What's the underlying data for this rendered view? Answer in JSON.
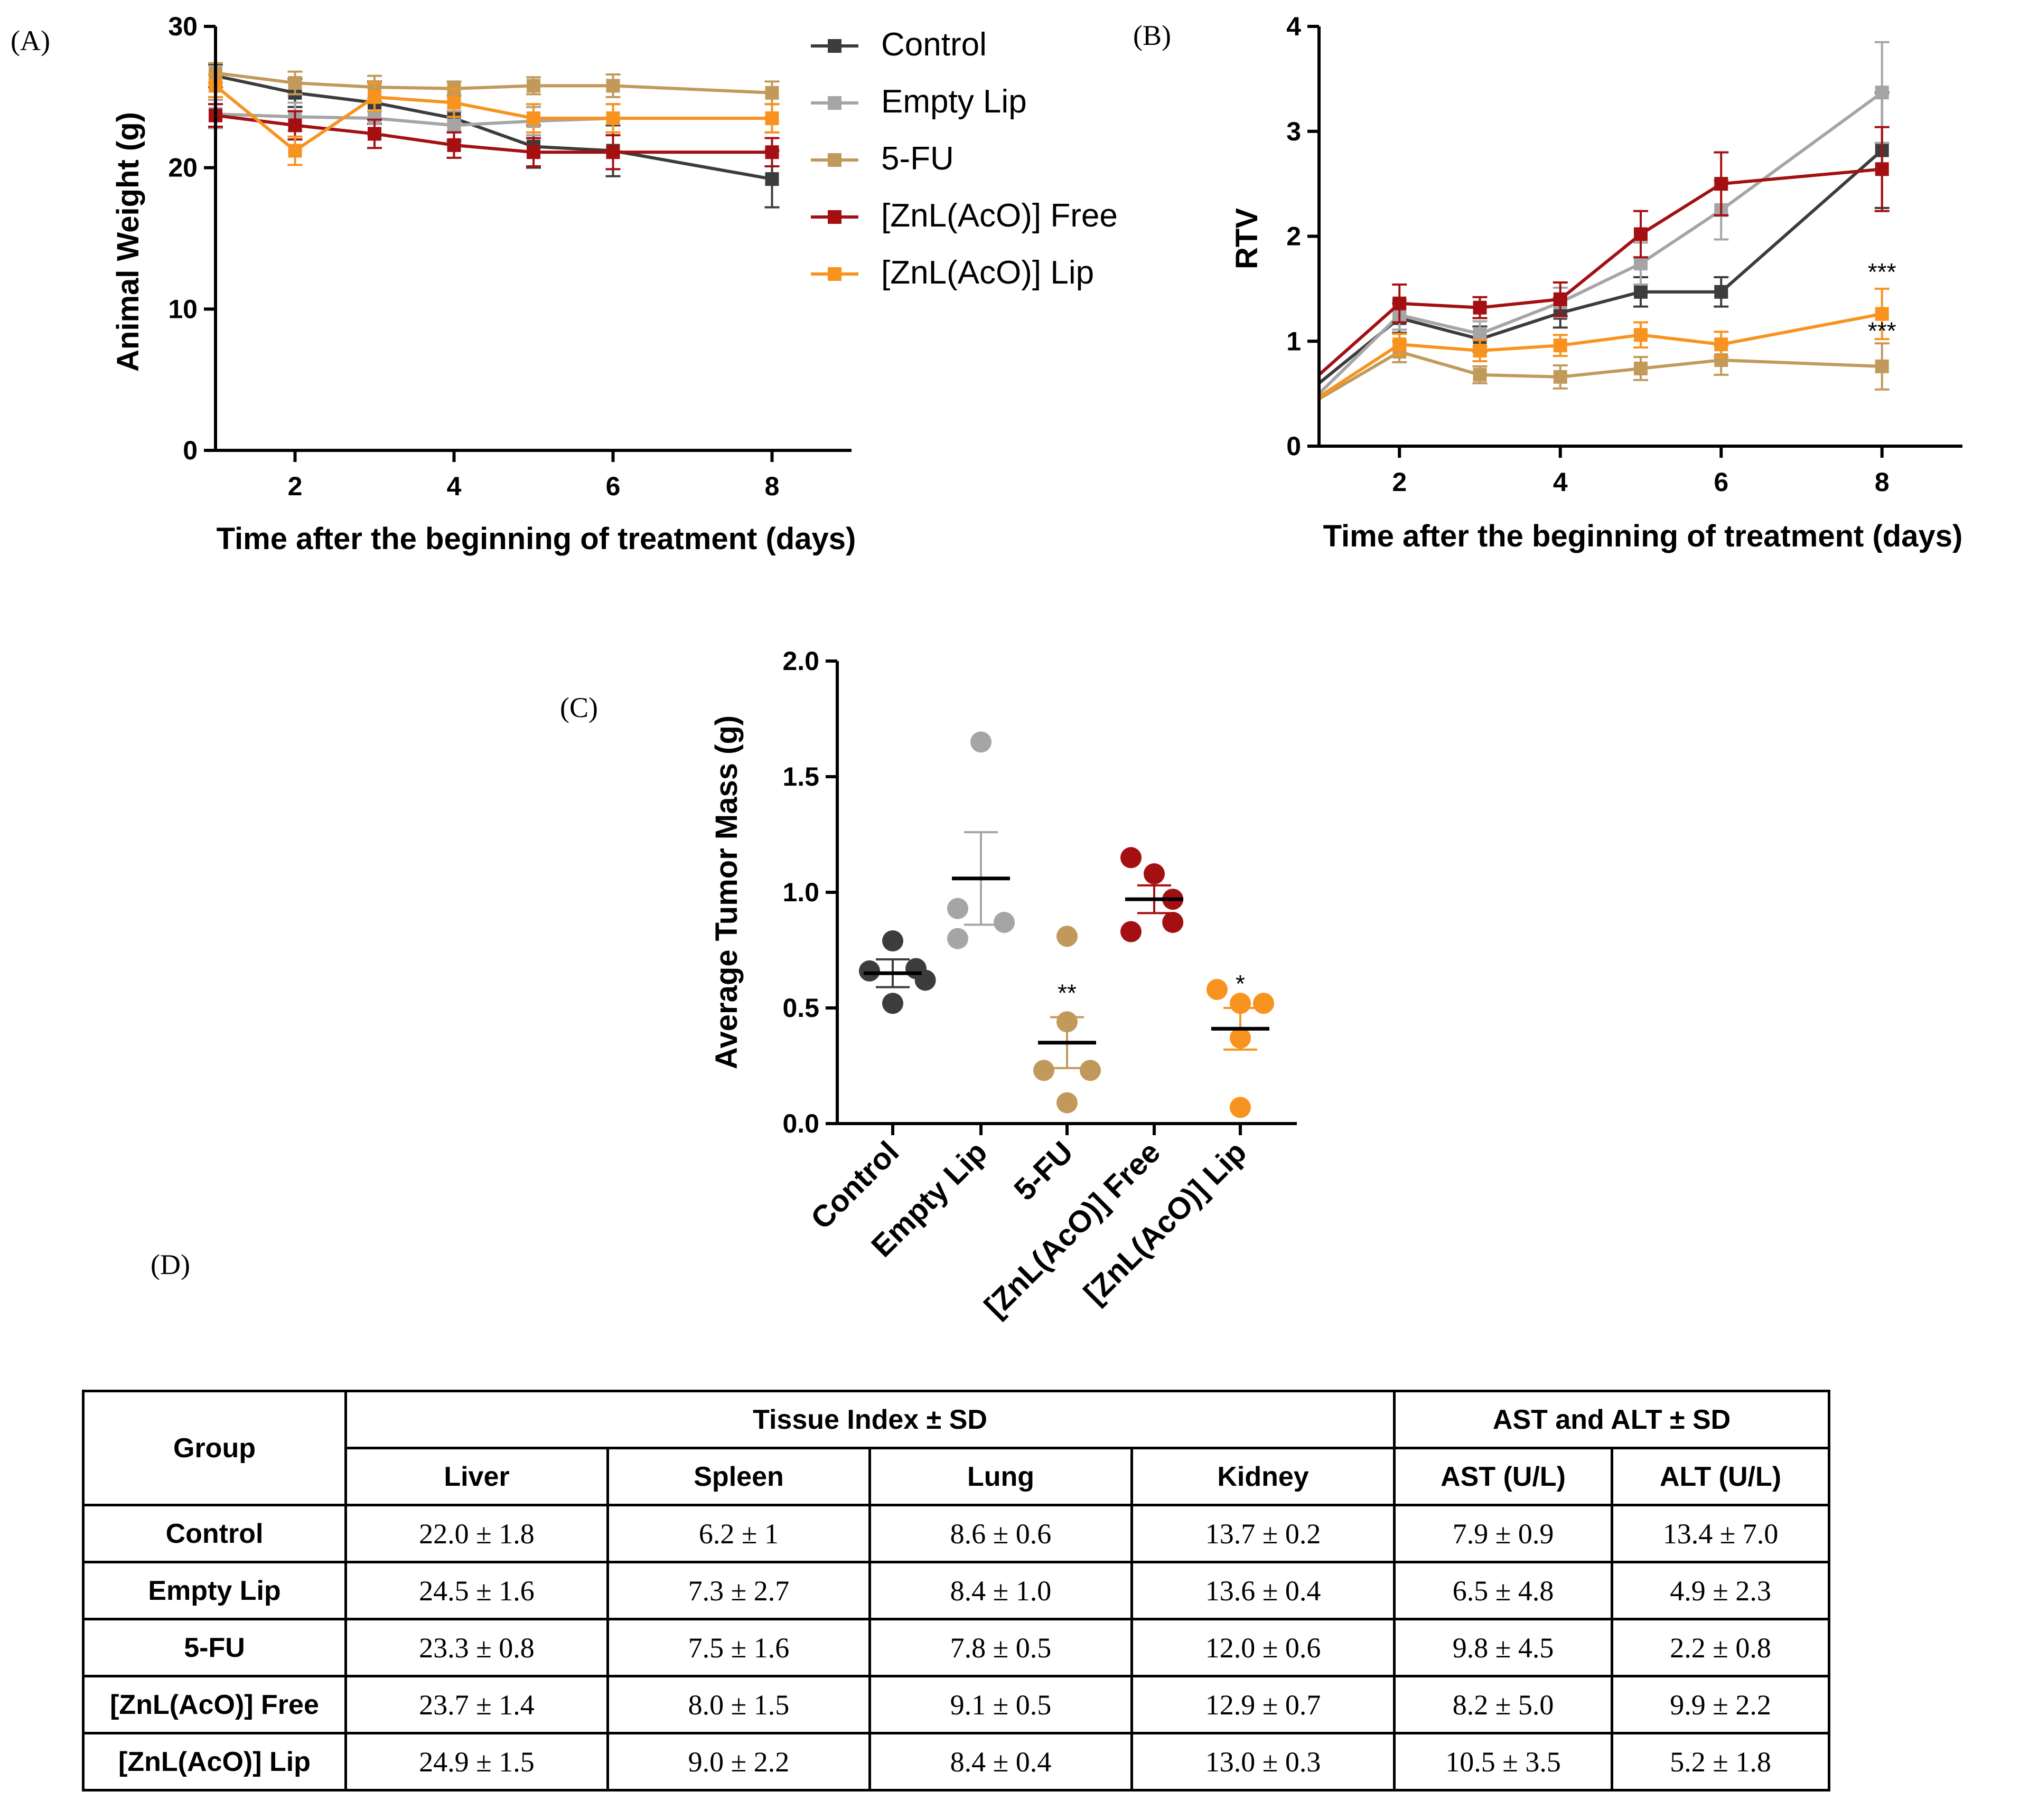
{
  "colors": {
    "control": "#3c3c3c",
    "empty_lip": "#a5a5a7",
    "five_fu": "#c19a5b",
    "znl_free": "#a40f12",
    "znl_lip": "#f7931e",
    "znl_lip_line": "#f5b45e"
  },
  "panel_labels": {
    "a": "(A)",
    "b": "(B)",
    "c": "(C)",
    "d": "(D)"
  },
  "chart_data": [
    {
      "id": "A",
      "type": "line",
      "title": "",
      "xlabel": "Time after the beginning of treatment (days)",
      "ylabel": "Animal Weight (g)",
      "xlim": [
        1,
        9
      ],
      "ylim": [
        0,
        30
      ],
      "xticks": [
        2,
        4,
        6,
        8
      ],
      "yticks": [
        0,
        10,
        20,
        30
      ],
      "legend_position": "right",
      "series": [
        {
          "name": "Control",
          "color_key": "control",
          "x": [
            1,
            2,
            3,
            4,
            5,
            6,
            8
          ],
          "values": [
            26.5,
            25.3,
            24.6,
            23.5,
            21.5,
            21.2,
            19.2
          ],
          "err": [
            0.8,
            1.0,
            1.5,
            1.6,
            1.5,
            1.8,
            2.0
          ]
        },
        {
          "name": "Empty Lip",
          "color_key": "empty_lip",
          "x": [
            1,
            2,
            3,
            4,
            5,
            6,
            8
          ],
          "values": [
            23.8,
            23.6,
            23.5,
            23.0,
            23.3,
            23.5,
            23.5
          ],
          "err": [
            1.0,
            1.0,
            1.2,
            1.0,
            1.0,
            1.0,
            1.0
          ]
        },
        {
          "name": "5-FU",
          "color_key": "five_fu",
          "x": [
            1,
            2,
            3,
            4,
            5,
            6,
            8
          ],
          "values": [
            26.7,
            26.0,
            25.7,
            25.6,
            25.8,
            25.8,
            25.3
          ],
          "err": [
            0.7,
            0.8,
            0.8,
            0.5,
            0.6,
            0.8,
            0.8
          ]
        },
        {
          "name": "[ZnL(AcO)] Free",
          "color_key": "znl_free",
          "x": [
            1,
            2,
            3,
            4,
            5,
            6,
            8
          ],
          "values": [
            23.7,
            23.0,
            22.4,
            21.6,
            21.1,
            21.1,
            21.1
          ],
          "err": [
            0.8,
            1.0,
            1.0,
            0.9,
            1.0,
            1.2,
            1.0
          ]
        },
        {
          "name": "[ZnL(AcO)] Lip",
          "color_key": "znl_lip",
          "x": [
            1,
            2,
            3,
            4,
            5,
            6,
            8
          ],
          "values": [
            25.8,
            21.2,
            25.0,
            24.6,
            23.5,
            23.5,
            23.5
          ],
          "err": [
            0.8,
            1.0,
            1.0,
            1.0,
            1.0,
            1.0,
            1.0
          ]
        }
      ]
    },
    {
      "id": "B",
      "type": "line",
      "title": "",
      "xlabel": "Time after the beginning of treatment (days)",
      "ylabel": "RTV",
      "xlim": [
        1,
        9
      ],
      "ylim": [
        0,
        4
      ],
      "xticks": [
        2,
        4,
        6,
        8
      ],
      "yticks": [
        0,
        1,
        2,
        3,
        4
      ],
      "annotations": [
        {
          "x": 8,
          "y": 1.58,
          "text": "***"
        },
        {
          "x": 8,
          "y": 1.02,
          "text": "***"
        }
      ],
      "series": [
        {
          "name": "Control",
          "color_key": "control",
          "x": [
            1,
            2,
            3,
            4,
            5,
            6,
            8
          ],
          "values": [
            0.6,
            1.22,
            1.02,
            1.27,
            1.47,
            1.47,
            2.82
          ],
          "err": [
            0,
            0.14,
            0.12,
            0.14,
            0.14,
            0.14,
            0.55
          ]
        },
        {
          "name": "Empty Lip",
          "color_key": "empty_lip",
          "x": [
            1,
            2,
            3,
            4,
            5,
            6,
            8
          ],
          "values": [
            0.5,
            1.25,
            1.07,
            1.37,
            1.74,
            2.25,
            3.37
          ],
          "err": [
            0,
            0.14,
            0.12,
            0.14,
            0.2,
            0.28,
            0.48
          ]
        },
        {
          "name": "5-FU",
          "color_key": "five_fu",
          "x": [
            1,
            2,
            3,
            4,
            5,
            6,
            8
          ],
          "values": [
            0.45,
            0.9,
            0.68,
            0.66,
            0.74,
            0.82,
            0.76
          ],
          "err": [
            0,
            0.1,
            0.08,
            0.11,
            0.11,
            0.14,
            0.22
          ]
        },
        {
          "name": "[ZnL(AcO)] Free",
          "color_key": "znl_free",
          "x": [
            1,
            2,
            3,
            4,
            5,
            6,
            8
          ],
          "values": [
            0.68,
            1.36,
            1.32,
            1.4,
            2.02,
            2.5,
            2.64
          ],
          "err": [
            0,
            0.18,
            0.1,
            0.16,
            0.22,
            0.3,
            0.4
          ]
        },
        {
          "name": "[ZnL(AcO)] Lip",
          "color_key": "znl_lip",
          "x": [
            1,
            2,
            3,
            4,
            5,
            6,
            8
          ],
          "values": [
            0.47,
            0.97,
            0.91,
            0.96,
            1.06,
            0.97,
            1.26
          ],
          "err": [
            0,
            0.1,
            0.1,
            0.1,
            0.12,
            0.12,
            0.24
          ]
        }
      ]
    },
    {
      "id": "C",
      "type": "scatter",
      "title": "",
      "xlabel": "",
      "ylabel": "Average Tumor Mass (g)",
      "ylim": [
        0,
        2
      ],
      "yticks": [
        "0.0",
        "0.5",
        "1.0",
        "1.5",
        "2.0"
      ],
      "categories": [
        "Control",
        "Empty Lip",
        "5-FU",
        "[ZnL(AcO)] Free",
        "[ZnL(AcO)] Lip"
      ],
      "groups": [
        {
          "name": "Control",
          "color_key": "control",
          "mean": 0.65,
          "sem": 0.06,
          "points": [
            0.79,
            0.66,
            0.67,
            0.62,
            0.52
          ],
          "offsets": [
            0,
            -0.5,
            0.5,
            0.7,
            0
          ],
          "sig": ""
        },
        {
          "name": "Empty Lip",
          "color_key": "empty_lip",
          "mean": 1.06,
          "sem": 0.2,
          "points": [
            1.65,
            0.93,
            0.8,
            0.87
          ],
          "offsets": [
            0,
            -0.5,
            -0.5,
            0.5
          ],
          "sig": ""
        },
        {
          "name": "5-FU",
          "color_key": "five_fu",
          "mean": 0.35,
          "sem": 0.11,
          "points": [
            0.81,
            0.44,
            0.23,
            0.23,
            0.09
          ],
          "offsets": [
            0,
            0,
            -0.5,
            0.5,
            0
          ],
          "sig": "**"
        },
        {
          "name": "[ZnL(AcO)] Free",
          "color_key": "znl_free",
          "mean": 0.97,
          "sem": 0.06,
          "points": [
            1.15,
            1.08,
            0.97,
            0.87,
            0.83
          ],
          "offsets": [
            -0.5,
            0,
            0.4,
            0.4,
            -0.5
          ],
          "sig": ""
        },
        {
          "name": "[ZnL(AcO)] Lip",
          "color_key": "znl_lip",
          "mean": 0.41,
          "sem": 0.09,
          "points": [
            0.58,
            0.52,
            0.52,
            0.37,
            0.07
          ],
          "offsets": [
            -0.5,
            0,
            0.5,
            0,
            0
          ],
          "sig": "*"
        }
      ]
    }
  ],
  "table": {
    "group_header": "Group",
    "tissue_header": "Tissue Index ± SD",
    "enzyme_header": "AST and ALT ± SD",
    "columns": [
      "Liver",
      "Spleen",
      "Lung",
      "Kidney",
      "AST (U/L)",
      "ALT (U/L)"
    ],
    "rows": [
      {
        "group": "Control",
        "cells": [
          "22.0 ± 1.8",
          "6.2 ± 1",
          "8.6 ± 0.6",
          "13.7 ± 0.2",
          "7.9 ± 0.9",
          "13.4 ± 7.0"
        ]
      },
      {
        "group": "Empty Lip",
        "cells": [
          "24.5 ± 1.6",
          "7.3 ± 2.7",
          "8.4 ± 1.0",
          "13.6 ± 0.4",
          "6.5 ± 4.8",
          "4.9 ± 2.3"
        ]
      },
      {
        "group": "5-FU",
        "cells": [
          "23.3 ± 0.8",
          "7.5 ± 1.6",
          "7.8 ± 0.5",
          "12.0 ± 0.6",
          "9.8 ± 4.5",
          "2.2 ± 0.8"
        ]
      },
      {
        "group": "[ZnL(AcO)] Free",
        "cells": [
          "23.7 ± 1.4",
          "8.0 ± 1.5",
          "9.1 ± 0.5",
          "12.9 ± 0.7",
          "8.2 ± 5.0",
          "9.9 ± 2.2"
        ]
      },
      {
        "group": "[ZnL(AcO)] Lip",
        "cells": [
          "24.9 ± 1.5",
          "9.0 ± 2.2",
          "8.4 ± 0.4",
          "13.0 ± 0.3",
          "10.5 ± 3.5",
          "5.2 ± 1.8"
        ]
      }
    ]
  }
}
